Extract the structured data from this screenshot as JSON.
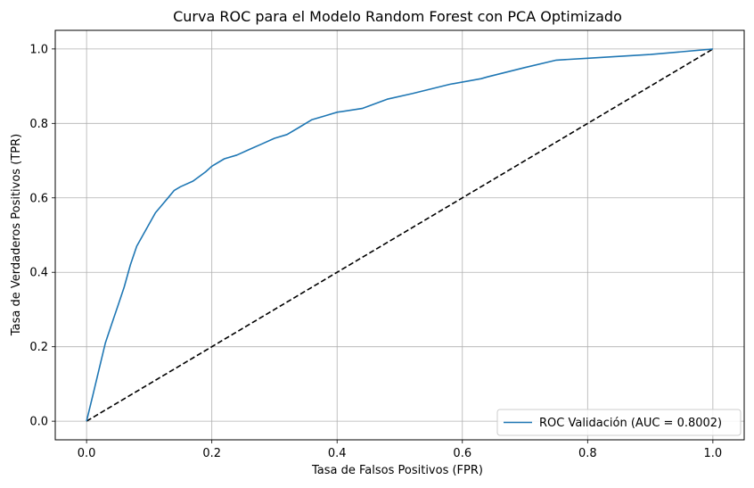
{
  "chart_data": {
    "type": "line",
    "title": "Curva ROC para el Modelo Random Forest con PCA Optimizado",
    "xlabel": "Tasa de Falsos Positivos (FPR)",
    "ylabel": "Tasa de Verdaderos Positivos (TPR)",
    "xlim": [
      -0.05,
      1.05
    ],
    "ylim": [
      -0.05,
      1.05
    ],
    "xticks": [
      0.0,
      0.2,
      0.4,
      0.6,
      0.8,
      1.0
    ],
    "yticks": [
      0.0,
      0.2,
      0.4,
      0.6,
      0.8,
      1.0
    ],
    "xtick_labels": [
      "0.0",
      "0.2",
      "0.4",
      "0.6",
      "0.8",
      "1.0"
    ],
    "ytick_labels": [
      "0.0",
      "0.2",
      "0.4",
      "0.6",
      "0.8",
      "1.0"
    ],
    "grid": true,
    "legend_position": "lower-right",
    "series": [
      {
        "name": "ROC Validación (AUC = 0.8002)",
        "color": "#1f77b4",
        "style": "solid",
        "x": [
          0.0,
          0.01,
          0.02,
          0.03,
          0.04,
          0.05,
          0.06,
          0.07,
          0.08,
          0.09,
          0.1,
          0.11,
          0.12,
          0.13,
          0.14,
          0.15,
          0.17,
          0.19,
          0.2,
          0.22,
          0.24,
          0.26,
          0.28,
          0.3,
          0.32,
          0.34,
          0.36,
          0.38,
          0.4,
          0.44,
          0.48,
          0.52,
          0.58,
          0.63,
          0.64,
          0.7,
          0.75,
          0.8,
          0.9,
          1.0
        ],
        "y": [
          0.0,
          0.07,
          0.14,
          0.21,
          0.26,
          0.31,
          0.36,
          0.42,
          0.47,
          0.5,
          0.53,
          0.56,
          0.58,
          0.6,
          0.62,
          0.63,
          0.645,
          0.67,
          0.685,
          0.705,
          0.715,
          0.73,
          0.745,
          0.76,
          0.77,
          0.79,
          0.81,
          0.82,
          0.83,
          0.84,
          0.865,
          0.88,
          0.905,
          0.92,
          0.925,
          0.95,
          0.97,
          0.975,
          0.985,
          1.0
        ]
      },
      {
        "name": "",
        "color": "#000000",
        "style": "dashed",
        "x": [
          0.0,
          1.0
        ],
        "y": [
          0.0,
          1.0
        ]
      }
    ]
  }
}
